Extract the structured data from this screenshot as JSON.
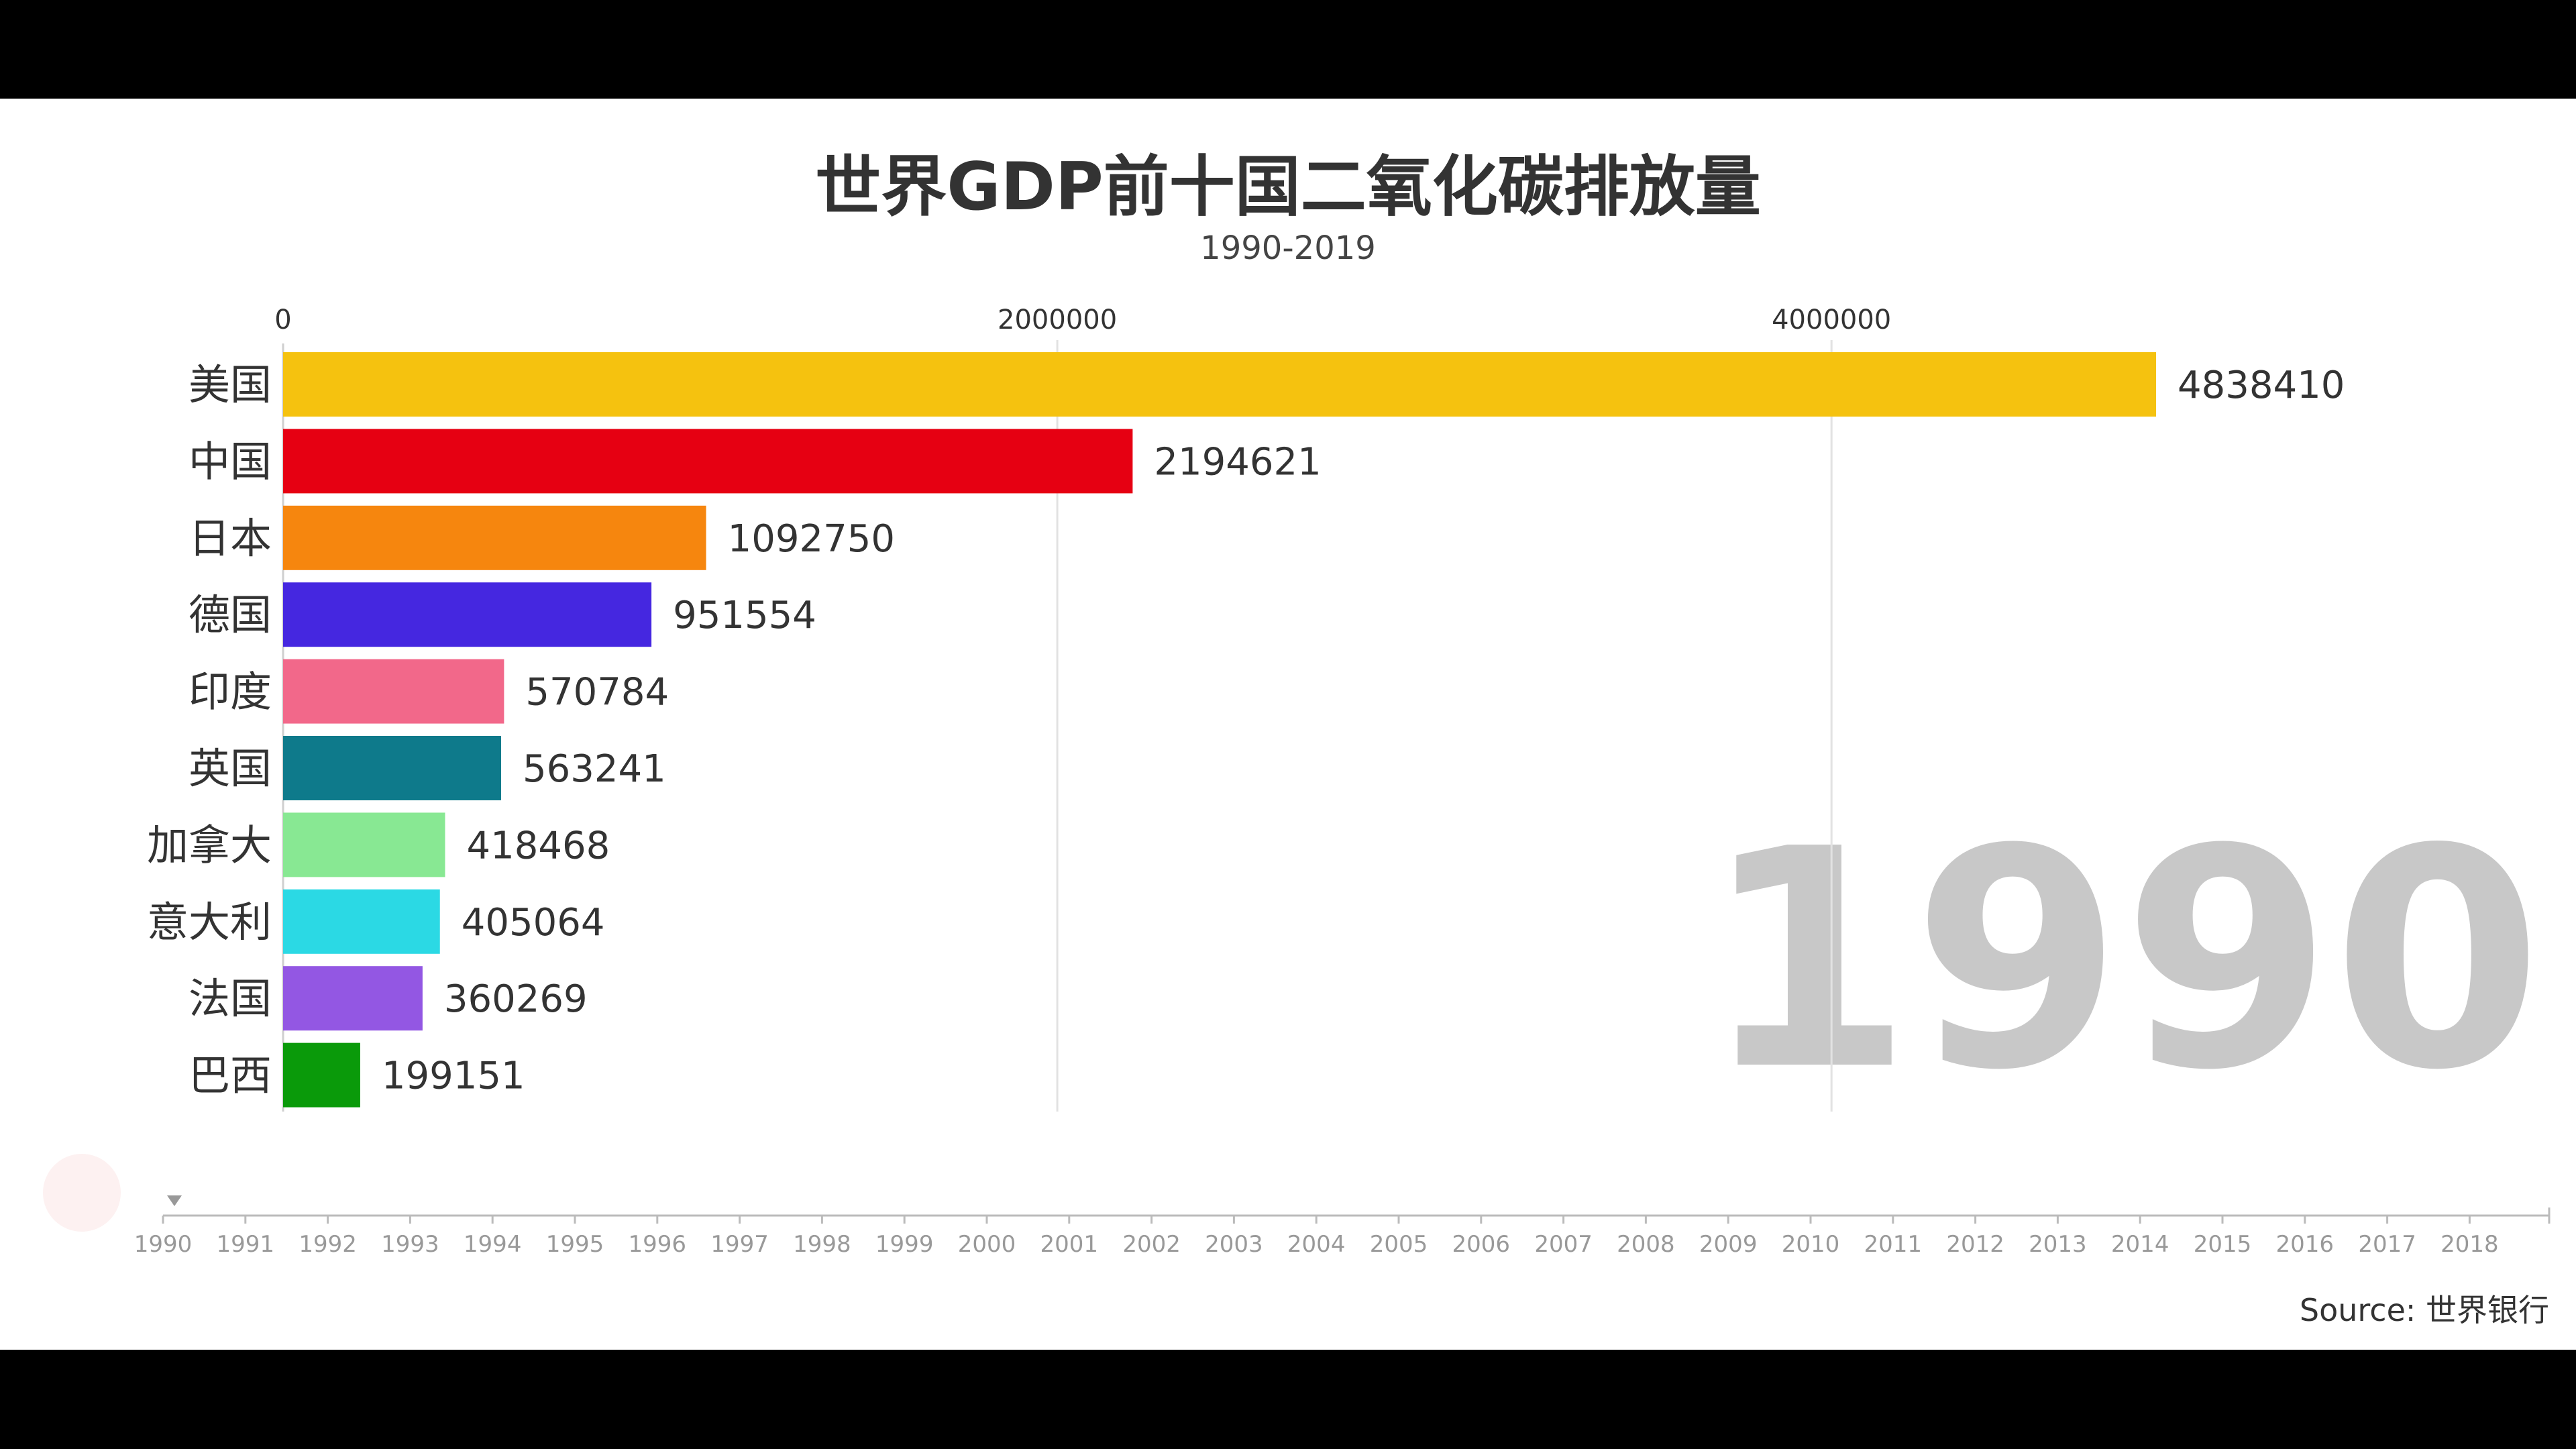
{
  "chart_data": {
    "type": "bar",
    "title": "世界GDP前十国二氧化碳排放量",
    "subtitle": "1990-2019",
    "categories": [
      "美国",
      "中国",
      "日本",
      "德国",
      "印度",
      "英国",
      "加拿大",
      "意大利",
      "法国",
      "巴西"
    ],
    "values": [
      4838410,
      2194621,
      1092750,
      951554,
      570784,
      563241,
      418468,
      405064,
      360269,
      199151
    ],
    "value_labels": [
      "4838410",
      "2194621",
      "1092750",
      "951554",
      "570784",
      "563241",
      "418468",
      "405064",
      "360269",
      "199151"
    ],
    "colors": [
      "#f5c20f",
      "#e60012",
      "#f6860e",
      "#4527e0",
      "#f2688a",
      "#0e7a8b",
      "#88e893",
      "#2bd9e4",
      "#9357e3",
      "#0a9a0a"
    ],
    "x_ticks": [
      0,
      2000000,
      4000000
    ],
    "x_tick_labels": [
      "0",
      "2000000",
      "4000000"
    ],
    "xlim": [
      0,
      5700000
    ],
    "grid": true,
    "current_year": "1990",
    "timeline": [
      "1990",
      "1991",
      "1992",
      "1993",
      "1994",
      "1995",
      "1996",
      "1997",
      "1998",
      "1999",
      "2000",
      "2001",
      "2002",
      "2003",
      "2004",
      "2005",
      "2006",
      "2007",
      "2008",
      "2009",
      "2010",
      "2011",
      "2012",
      "2013",
      "2014",
      "2015",
      "2016",
      "2017",
      "2018"
    ],
    "source": "Source: 世界银行"
  }
}
